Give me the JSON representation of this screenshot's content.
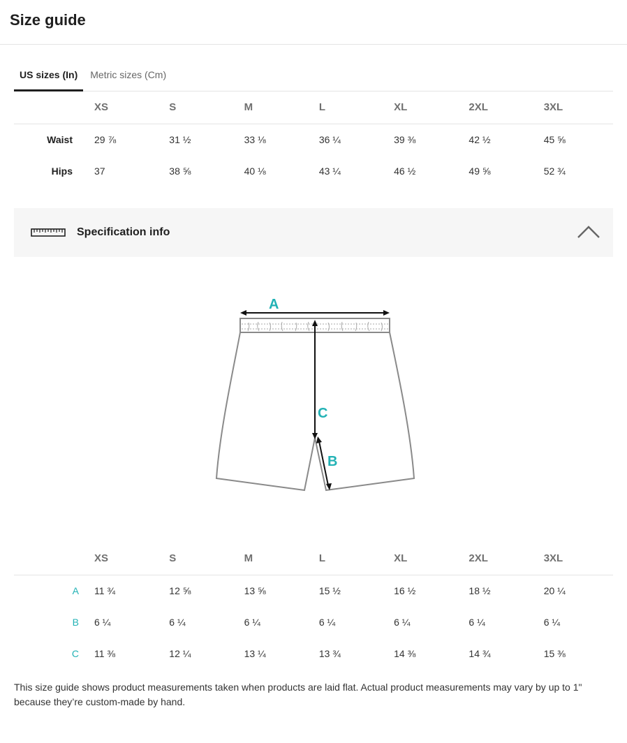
{
  "title": "Size guide",
  "tabs": [
    {
      "label": "US sizes (In)",
      "active": true
    },
    {
      "label": "Metric sizes (Cm)",
      "active": false
    }
  ],
  "us_table": {
    "sizes": [
      "XS",
      "S",
      "M",
      "L",
      "XL",
      "2XL",
      "3XL"
    ],
    "rows": [
      {
        "label": "Waist",
        "values": [
          "29 ⅞",
          "31 ½",
          "33 ⅛",
          "36 ¼",
          "39 ⅜",
          "42 ½",
          "45 ⅝"
        ]
      },
      {
        "label": "Hips",
        "values": [
          "37",
          "38 ⅝",
          "40 ⅛",
          "43 ¼",
          "46 ½",
          "49 ⅝",
          "52 ¾"
        ]
      }
    ]
  },
  "spec": {
    "title": "Specification info",
    "ruler_icon": "ruler-icon",
    "toggle_icon": "chevron-up-icon",
    "expanded": true,
    "labels": {
      "a": "A",
      "b": "B",
      "c": "C"
    },
    "accent_color": "#22b2b5"
  },
  "spec_table": {
    "sizes": [
      "XS",
      "S",
      "M",
      "L",
      "XL",
      "2XL",
      "3XL"
    ],
    "rows": [
      {
        "label": "A",
        "values": [
          "11 ¾",
          "12 ⅝",
          "13 ⅝",
          "15 ½",
          "16 ½",
          "18 ½",
          "20 ¼"
        ]
      },
      {
        "label": "B",
        "values": [
          "6 ¼",
          "6 ¼",
          "6 ¼",
          "6 ¼",
          "6 ¼",
          "6 ¼",
          "6 ¼"
        ]
      },
      {
        "label": "C",
        "values": [
          "11 ⅜",
          "12 ¼",
          "13 ¼",
          "13 ¾",
          "14 ⅜",
          "14 ¾",
          "15 ⅜"
        ]
      }
    ]
  },
  "note": "This size guide shows product measurements taken when products are laid flat. Actual product measurements may vary by up to 1\" because they’re custom-made by hand."
}
